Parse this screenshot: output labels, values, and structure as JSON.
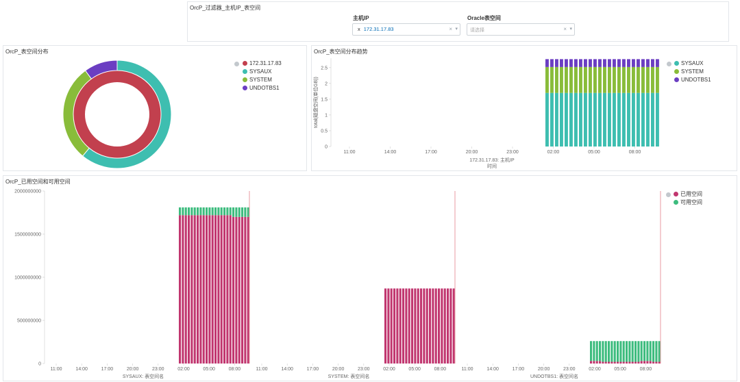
{
  "filter_panel": {
    "title": "OrcP_过滤器_主机IP_表空间",
    "host_ip": {
      "label": "主机IP",
      "selected": "172.31.17.83",
      "remove": "x"
    },
    "tablespace": {
      "label": "Oracle表空间",
      "placeholder": "请选择"
    }
  },
  "colors": {
    "host": "#c2404e",
    "sysaux": "#3ebeb0",
    "system": "#89bc3a",
    "undotbs1": "#6b3ec2",
    "used": "#c1366f",
    "free": "#3dbc7e"
  },
  "pie_panel": {
    "title": "OrcP_表空间分布",
    "legend": [
      {
        "label": "172.31.17.83",
        "color": "#c2404e"
      },
      {
        "label": "SYSAUX",
        "color": "#3ebeb0"
      },
      {
        "label": "SYSTEM",
        "color": "#89bc3a"
      },
      {
        "label": "UNDOTBS1",
        "color": "#6b3ec2"
      }
    ]
  },
  "trend_panel": {
    "title": "OrcP_表空间分布趋势",
    "legend": [
      {
        "label": "SYSAUX",
        "color": "#3ebeb0"
      },
      {
        "label": "SYSTEM",
        "color": "#89bc3a"
      },
      {
        "label": "UNDOTBS1",
        "color": "#6b3ec2"
      }
    ]
  },
  "space_panel": {
    "title": "OrcP_已用空间和可用空间",
    "legend": [
      {
        "label": "已用空间",
        "color": "#c1366f"
      },
      {
        "label": "可用空间",
        "color": "#3dbc7e"
      }
    ]
  },
  "chart_data": [
    {
      "type": "pie",
      "title": "OrcP_表空间分布",
      "inner": {
        "labels": [
          "172.31.17.83"
        ],
        "values": [
          100
        ]
      },
      "outer": {
        "labels": [
          "SYSAUX",
          "SYSTEM",
          "UNDOTBS1"
        ],
        "values": [
          61,
          29,
          10
        ]
      }
    },
    {
      "type": "bar",
      "stacked": true,
      "title": "OrcP_表空间分布趋势",
      "ylabel": "total(磁盘空间(单位GB))",
      "xlabel_top": "172.31.17.83: 主机IP",
      "xlabel": "时间",
      "ylim": [
        0,
        2.8
      ],
      "yticks": [
        "0",
        "0.5",
        "1",
        "1.5",
        "2",
        "2.5"
      ],
      "xticks": [
        "11:00",
        "14:00",
        "17:00",
        "20:00",
        "23:00",
        "02:00",
        "05:00",
        "08:00"
      ],
      "bar_count": 24,
      "series": [
        {
          "name": "SYSAUX",
          "value": 1.7
        },
        {
          "name": "SYSTEM",
          "value": 0.82
        },
        {
          "name": "UNDOTBS1",
          "value": 0.25
        }
      ]
    },
    {
      "type": "bar",
      "stacked": true,
      "title": "OrcP_已用空间和可用空间",
      "ylim": [
        0,
        2000000000
      ],
      "yticks": [
        "0",
        "500000000",
        "1000000000",
        "1500000000",
        "2000000000"
      ],
      "xticks": [
        "11:00",
        "14:00",
        "17:00",
        "20:00",
        "23:00",
        "02:00",
        "05:00",
        "08:00"
      ],
      "groups": [
        {
          "label": "SYSAUX: 表空间名",
          "bar_count": 24,
          "used": [
            1720000000,
            1720000000,
            1720000000,
            1720000000,
            1720000000,
            1720000000,
            1720000000,
            1720000000,
            1720000000,
            1720000000,
            1720000000,
            1720000000,
            1720000000,
            1720000000,
            1720000000,
            1720000000,
            1720000000,
            1720000000,
            1700000000,
            1700000000,
            1700000000,
            1700000000,
            1700000000,
            1700000000
          ],
          "total": 1810000000
        },
        {
          "label": "SYSTEM: 表空间名",
          "bar_count": 24,
          "used": [
            870000000,
            870000000,
            870000000,
            870000000,
            870000000,
            870000000,
            870000000,
            870000000,
            870000000,
            870000000,
            870000000,
            870000000,
            870000000,
            870000000,
            870000000,
            870000000,
            870000000,
            870000000,
            870000000,
            870000000,
            870000000,
            870000000,
            870000000,
            870000000
          ],
          "total": 870000000
        },
        {
          "label": "UNDOTBS1: 表空间名",
          "bar_count": 24,
          "used": [
            30000000,
            30000000,
            30000000,
            30000000,
            20000000,
            20000000,
            20000000,
            20000000,
            20000000,
            20000000,
            20000000,
            20000000,
            20000000,
            20000000,
            20000000,
            20000000,
            20000000,
            30000000,
            30000000,
            30000000,
            30000000,
            20000000,
            20000000,
            20000000
          ],
          "total": 260000000
        }
      ],
      "series": [
        {
          "name": "已用空间"
        },
        {
          "name": "可用空间"
        }
      ]
    }
  ]
}
